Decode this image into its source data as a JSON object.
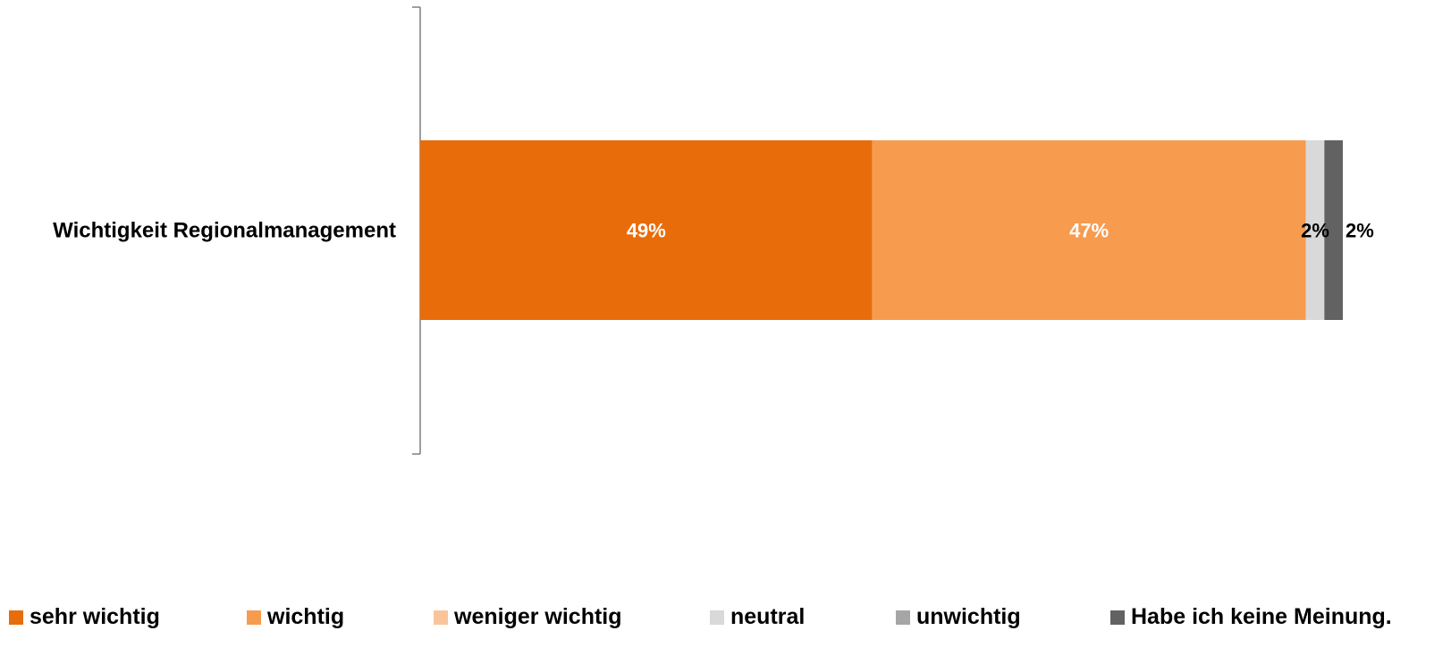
{
  "chart_data": {
    "type": "bar",
    "orientation": "horizontal",
    "stacked": true,
    "categories": [
      "Wichtigkeit Regionalmanagement"
    ],
    "xlim": [
      0,
      100
    ],
    "grid": false,
    "legend_position": "bottom",
    "series": [
      {
        "name": "sehr wichtig",
        "values": [
          49
        ],
        "label": "49%",
        "color": "#E96C0A",
        "label_color": "#FFFFFF"
      },
      {
        "name": "wichtig",
        "values": [
          47
        ],
        "label": "47%",
        "color": "#F79B4F",
        "label_color": "#FFFFFF"
      },
      {
        "name": "weniger wichtig",
        "values": [
          0
        ],
        "label": "",
        "color": "#FAC49A",
        "label_color": "#000000"
      },
      {
        "name": "neutral",
        "values": [
          2
        ],
        "label": "2%",
        "color": "#D9D9D9",
        "label_color": "#000000"
      },
      {
        "name": "unwichtig",
        "values": [
          0
        ],
        "label": "",
        "color": "#A6A6A6",
        "label_color": "#000000"
      },
      {
        "name": "Habe ich keine Meinung.",
        "values": [
          2
        ],
        "label": "2%",
        "color": "#626262",
        "label_color": "#000000"
      }
    ]
  }
}
